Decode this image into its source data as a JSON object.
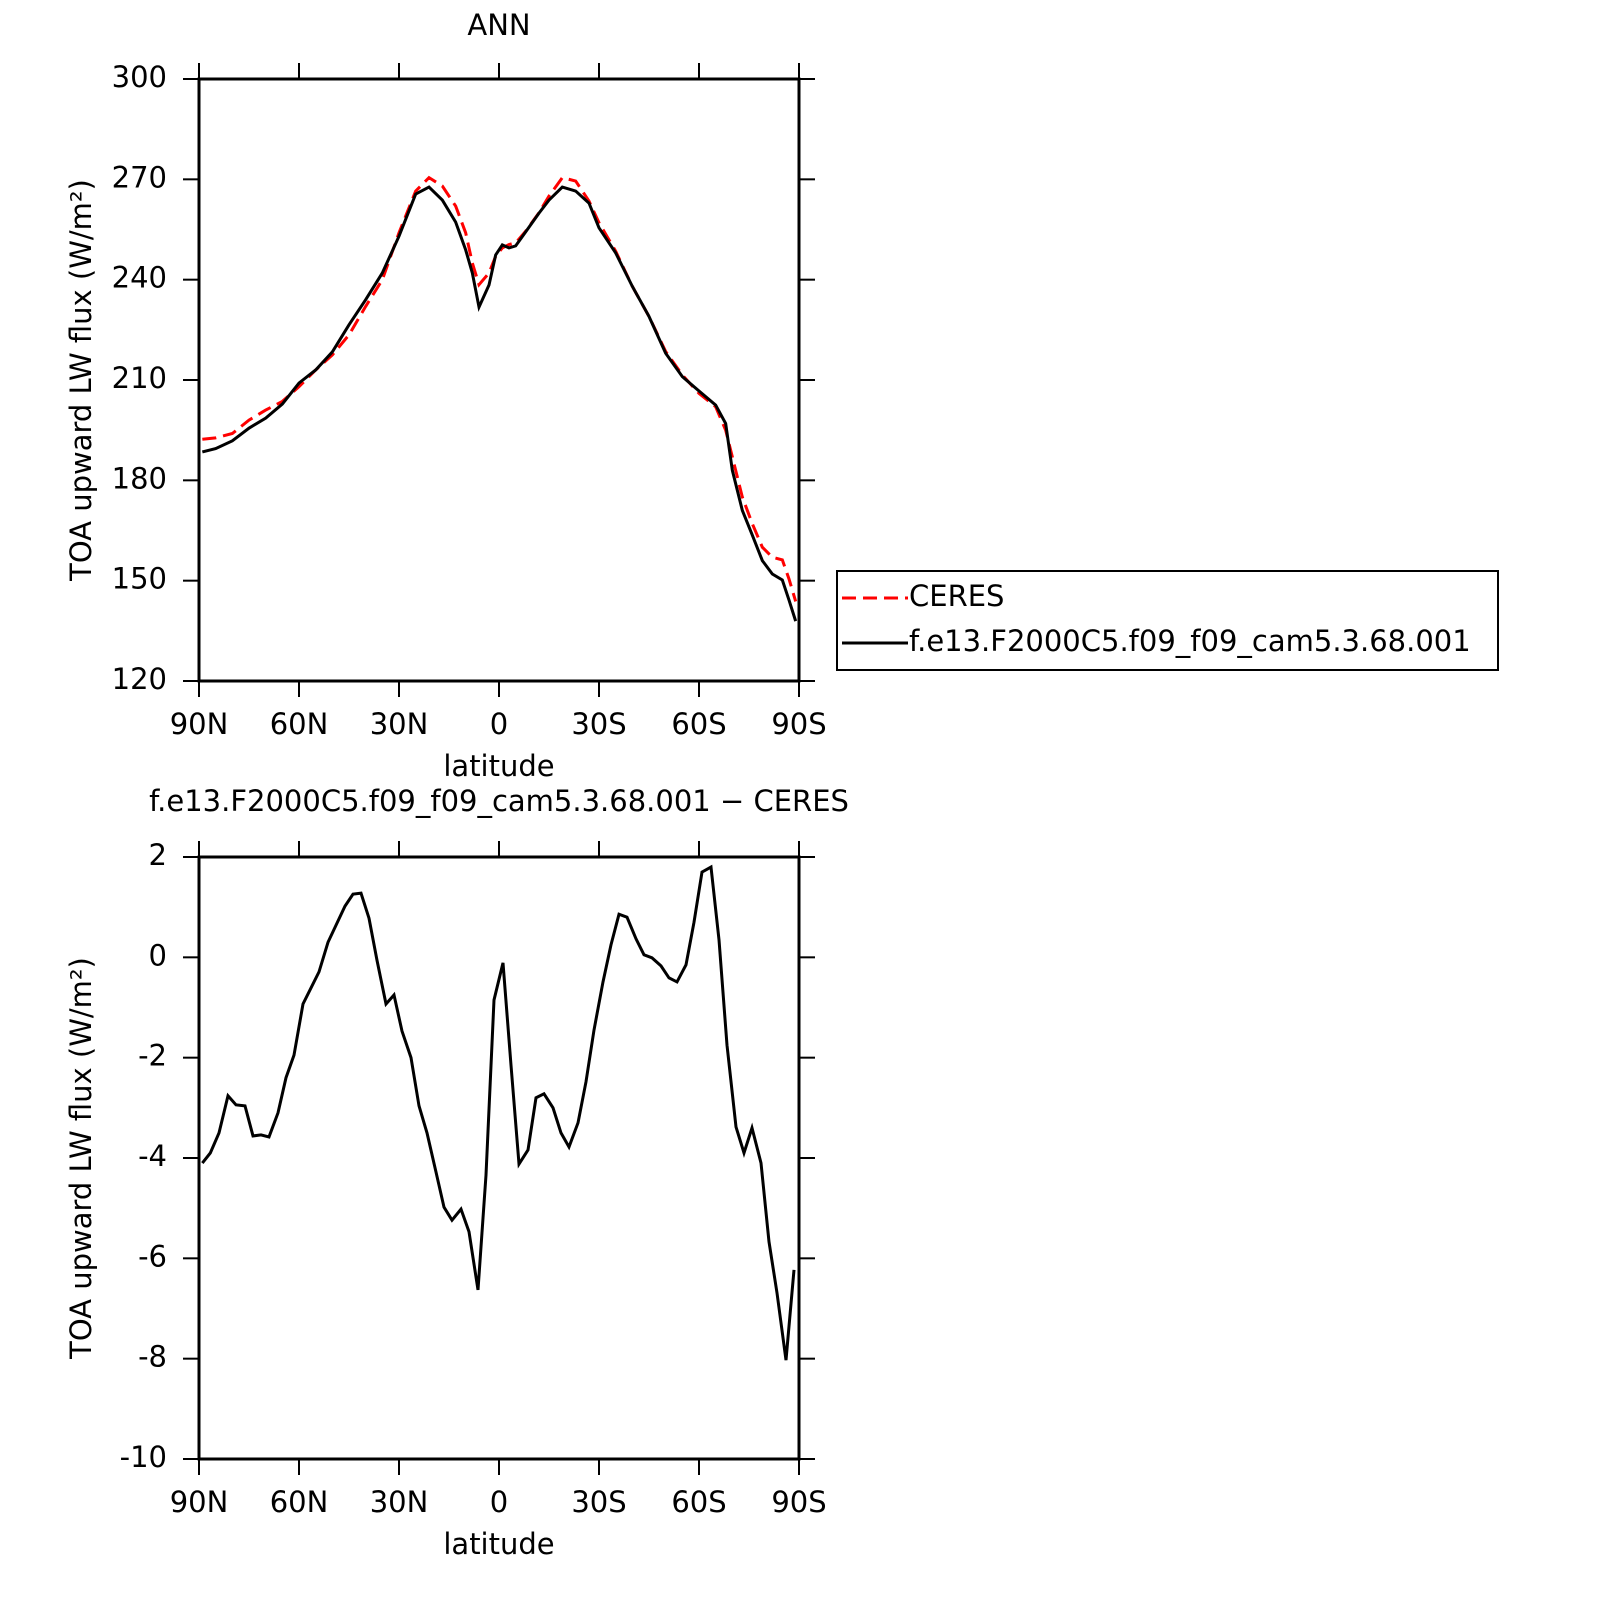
{
  "chart_data": [
    {
      "type": "line",
      "title": "ANN",
      "xlabel": "latitude",
      "ylabel": "TOA upward LW flux (W/m²)",
      "x": [
        89,
        85,
        80,
        75,
        70,
        65,
        60,
        55,
        50,
        45,
        40,
        35,
        30,
        25,
        21,
        17,
        13,
        10,
        8,
        6,
        3,
        1,
        -1,
        -3,
        -5,
        -8,
        -12,
        -15,
        -19,
        -23,
        -27,
        -30,
        -35,
        -40,
        -45,
        -50,
        -55,
        -60,
        -65,
        -68,
        -70,
        -73,
        -76,
        -79,
        -82,
        -85,
        -87,
        -89
      ],
      "series": [
        {
          "name": "CERES",
          "color": "#ff0000",
          "linestyle": "dashed",
          "values": [
            192.3,
            192.7,
            194,
            198,
            201,
            203.6,
            208,
            213,
            217.5,
            223.5,
            232,
            240,
            254,
            266.5,
            270.5,
            268,
            262,
            254,
            245,
            238.5,
            242,
            247,
            249.5,
            250.5,
            251,
            254.5,
            260,
            265,
            270.5,
            269.5,
            263.5,
            257,
            248.5,
            238,
            229,
            218.5,
            211.5,
            206,
            202,
            195,
            187,
            175,
            167,
            160,
            157,
            156.2,
            150.5,
            143.8
          ]
        },
        {
          "name": "f.e13.F2000C5.f09_f09_cam5.3.68.001",
          "color": "#000000",
          "linestyle": "solid",
          "values": [
            188.5,
            189.5,
            191.8,
            195.6,
            198.6,
            202.8,
            209.1,
            213,
            218.4,
            226.5,
            234,
            242,
            253,
            265.6,
            267.7,
            263.8,
            257.2,
            248.9,
            242,
            231.8,
            238.4,
            247.4,
            250.4,
            249.5,
            250.1,
            254.3,
            259.9,
            263.8,
            267.7,
            266.5,
            262.9,
            255.5,
            248,
            238,
            229,
            218,
            211,
            206.7,
            202.5,
            197,
            183,
            171,
            163.6,
            156,
            152,
            150.2,
            144.2,
            137.9
          ]
        }
      ],
      "xlim": [
        90,
        -90
      ],
      "xticks": [
        {
          "value": 90,
          "label": "90N"
        },
        {
          "value": 60,
          "label": "60N"
        },
        {
          "value": 30,
          "label": "30N"
        },
        0,
        {
          "value": -30,
          "label": "30S"
        },
        {
          "value": -60,
          "label": "60S"
        },
        {
          "value": -90,
          "label": "90S"
        }
      ],
      "ylim": [
        120,
        300
      ],
      "yticks": [
        120,
        150,
        180,
        210,
        240,
        270,
        300
      ],
      "legend": "right"
    },
    {
      "type": "line",
      "title": "f.e13.F2000C5.f09_f09_cam5.3.68.001 − CERES",
      "xlabel": "latitude",
      "ylabel": "TOA upward LW flux (W/m²)",
      "x": [
        89,
        86.6,
        84,
        81.3,
        78.9,
        76.2,
        73.8,
        71.4,
        69,
        66.3,
        63.9,
        61.5,
        58.8,
        56.4,
        54,
        51.3,
        48.9,
        46.2,
        43.8,
        41.4,
        39,
        36.6,
        33.9,
        31.5,
        29.1,
        26.4,
        24,
        21.6,
        18.9,
        16.5,
        14.1,
        11.4,
        9,
        6.3,
        3.9,
        1.5,
        -1.2,
        -3.6,
        -6,
        -8.7,
        -11.1,
        -13.5,
        -16.2,
        -18.6,
        -21,
        -23.7,
        -26.1,
        -28.5,
        -31.2,
        -33.6,
        -36,
        -38.4,
        -41.1,
        -43.5,
        -45.9,
        -48.6,
        -51,
        -53.4,
        -56.1,
        -58.5,
        -60.9,
        -63.6,
        -66,
        -68.4,
        -71.1,
        -73.5,
        -75.9,
        -78.6,
        -81,
        -83.4,
        -86.1,
        -88.5
      ],
      "values": [
        -4.1,
        -3.9,
        -3.5,
        -2.76,
        -2.94,
        -2.96,
        -3.56,
        -3.54,
        -3.58,
        -3.1,
        -2.4,
        -1.95,
        -0.93,
        -0.61,
        -0.29,
        0.3,
        0.64,
        1.02,
        1.26,
        1.28,
        0.78,
        -0.06,
        -0.93,
        -0.75,
        -1.47,
        -2,
        -2.96,
        -3.5,
        -4.28,
        -4.98,
        -5.24,
        -5.02,
        -5.47,
        -6.63,
        -4.34,
        -0.85,
        -0.11,
        -2.15,
        -4.12,
        -3.84,
        -2.8,
        -2.72,
        -3,
        -3.5,
        -3.78,
        -3.3,
        -2.48,
        -1.45,
        -0.49,
        0.25,
        0.86,
        0.8,
        0.37,
        0.05,
        -0.01,
        -0.17,
        -0.41,
        -0.49,
        -0.15,
        0.7,
        1.7,
        1.8,
        0.35,
        -1.75,
        -3.38,
        -3.9,
        -3.4,
        -4.1,
        -5.67,
        -6.69,
        -8.03,
        -6.23
      ],
      "color": "#000000",
      "linestyle": "solid",
      "xlim": [
        90,
        -90
      ],
      "xticks": [
        {
          "value": 90,
          "label": "90N"
        },
        {
          "value": 60,
          "label": "60N"
        },
        {
          "value": 30,
          "label": "30N"
        },
        0,
        {
          "value": -30,
          "label": "30S"
        },
        {
          "value": -60,
          "label": "60S"
        },
        {
          "value": -90,
          "label": "90S"
        }
      ],
      "ylim": [
        -10,
        2
      ],
      "yticks": [
        -10,
        -8,
        -6,
        -4,
        -2,
        0,
        2
      ]
    }
  ]
}
